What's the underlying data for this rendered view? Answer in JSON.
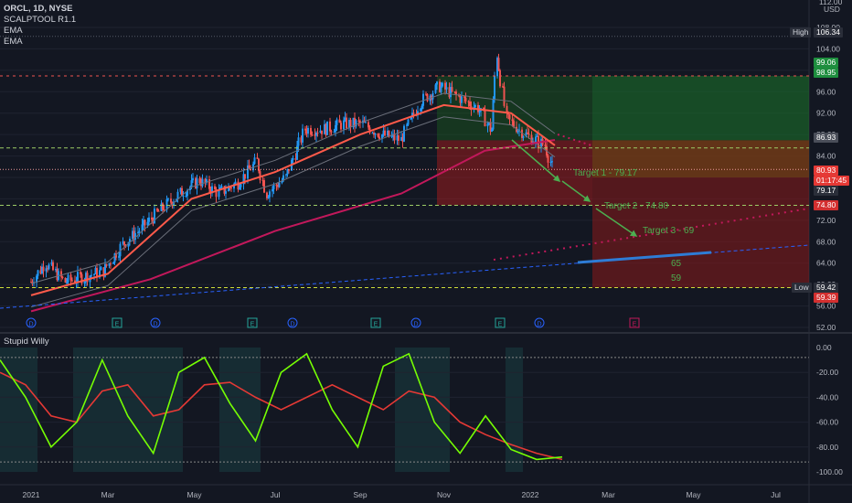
{
  "header": {
    "symbol_line": "ORCL, 1D, NYSE",
    "indicators": [
      "SCALPTOOL R1.1",
      "EMA",
      "EMA"
    ],
    "currency": "USD",
    "top_value": "112.00"
  },
  "sub_panel": {
    "title": "Stupid Willy"
  },
  "price_tags": {
    "high_label": "High",
    "high_value": "106.34",
    "tp_a": "99.06",
    "tp_b": "98.95",
    "level_a": "86.93",
    "last": "80.93",
    "countdown": "01:17:45",
    "target1_tag": "79.17",
    "target2_tag": "74.80",
    "low_label": "Low",
    "low_value": "59.42",
    "low_tag": "59.39"
  },
  "annotations": {
    "target1": "Target 1 - 79.17",
    "target2": "Target 2 - 74.80",
    "target3": "Target 3 - 69",
    "level65": "65",
    "level59": "59"
  },
  "colors": {
    "up": "#26a69a",
    "down": "#ef5350",
    "candle_up": "#2196f3",
    "ema_fast": "#ff5a4a",
    "ema_slow": "#c2185b",
    "green_zone": "#1b5e20",
    "red_zone": "#7f1d1d",
    "text_green": "#4caf50"
  },
  "chart_data": [
    {
      "type": "candlestick",
      "title": "ORCL, 1D, NYSE",
      "ylim": [
        52,
        112
      ],
      "y_ticks": [
        "108.00",
        "104.00",
        "100.00",
        "96.00",
        "92.00",
        "88.00",
        "84.00",
        "80.00",
        "76.00",
        "72.00",
        "68.00",
        "64.00",
        "60.00",
        "56.00",
        "52.00"
      ],
      "x_ticks": [
        "2021",
        "Mar",
        "May",
        "Jul",
        "Sep",
        "Nov",
        "2022",
        "Mar",
        "May",
        "Jul"
      ],
      "close_path": [
        [
          "2021-01-04",
          60.5
        ],
        [
          "2021-01-15",
          64
        ],
        [
          "2021-01-29",
          60.5
        ],
        [
          "2021-02-12",
          61.5
        ],
        [
          "2021-02-26",
          62.5
        ],
        [
          "2021-03-12",
          67.5
        ],
        [
          "2021-03-26",
          70.5
        ],
        [
          "2021-04-09",
          74
        ],
        [
          "2021-04-23",
          77
        ],
        [
          "2021-05-07",
          79.5
        ],
        [
          "2021-05-21",
          77
        ],
        [
          "2021-06-04",
          79
        ],
        [
          "2021-06-18",
          83
        ],
        [
          "2021-06-25",
          77
        ],
        [
          "2021-07-09",
          80
        ],
        [
          "2021-07-23",
          89
        ],
        [
          "2021-08-06",
          89
        ],
        [
          "2021-08-20",
          90
        ],
        [
          "2021-09-03",
          90
        ],
        [
          "2021-09-17",
          88
        ],
        [
          "2021-10-01",
          87
        ],
        [
          "2021-10-15",
          94
        ],
        [
          "2021-10-29",
          97
        ],
        [
          "2021-11-12",
          95
        ],
        [
          "2021-11-26",
          93
        ],
        [
          "2021-12-06",
          89
        ],
        [
          "2021-12-10",
          103
        ],
        [
          "2021-12-17",
          91
        ],
        [
          "2021-12-31",
          88
        ],
        [
          "2022-01-14",
          86
        ],
        [
          "2022-01-21",
          80.93
        ]
      ],
      "ema_fast": [
        [
          "2021-01-04",
          58
        ],
        [
          "2021-03-01",
          62
        ],
        [
          "2021-05-01",
          76
        ],
        [
          "2021-07-01",
          81
        ],
        [
          "2021-09-01",
          88
        ],
        [
          "2021-11-01",
          93.5
        ],
        [
          "2021-12-20",
          92
        ],
        [
          "2022-01-21",
          86
        ]
      ],
      "ema_slow": [
        [
          "2021-01-04",
          55
        ],
        [
          "2021-04-01",
          61
        ],
        [
          "2021-07-01",
          70
        ],
        [
          "2021-10-01",
          77
        ],
        [
          "2021-12-01",
          85
        ],
        [
          "2022-01-21",
          87
        ]
      ],
      "levels": {
        "high": 106.34,
        "low": 59.42,
        "target1": 79.17,
        "target2": 74.8,
        "target3": 69,
        "entry": 86.93,
        "take_profit": 98.95
      }
    },
    {
      "type": "line",
      "title": "Stupid Willy",
      "ylim": [
        -100,
        0
      ],
      "y_ticks": [
        "0.00",
        "-20.00",
        "-40.00",
        "-60.00",
        "-80.00",
        "-100.00"
      ],
      "series": [
        {
          "values": [
            -10,
            -40,
            -80,
            -60,
            -10,
            -55,
            -85,
            -20,
            -8,
            -45,
            -75,
            -20,
            -5,
            -50,
            -80,
            -15,
            -5,
            -60,
            -85,
            -55,
            -82,
            -90,
            -88
          ]
        },
        {
          "values": [
            -20,
            -30,
            -55,
            -60,
            -35,
            -30,
            -55,
            -50,
            -30,
            -28,
            -40,
            -50,
            -40,
            -30,
            -40,
            -50,
            -35,
            -40,
            -60,
            -70,
            -78,
            -85,
            -90
          ]
        }
      ]
    }
  ]
}
